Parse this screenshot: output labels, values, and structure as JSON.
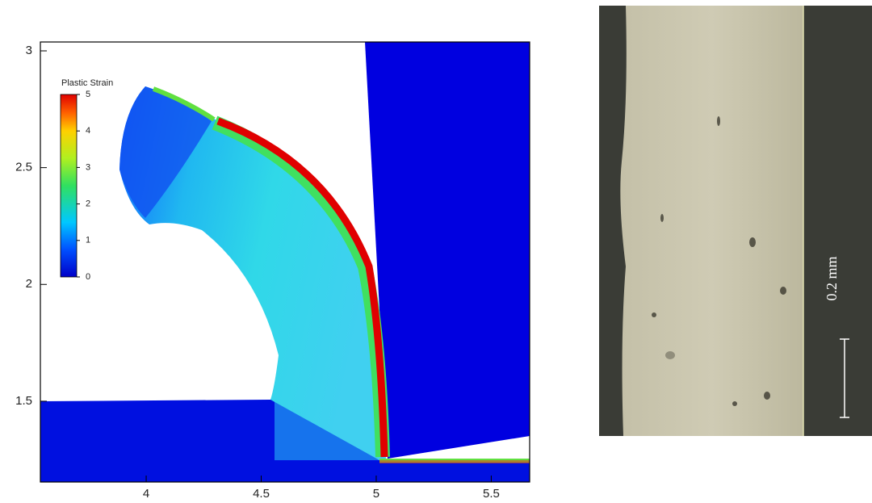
{
  "chart_data": [
    {
      "type": "contour",
      "xlim": [
        3.54,
        5.667
      ],
      "ylim": [
        1.154,
        3.038
      ],
      "xticks": [
        4,
        4.5,
        5,
        5.5
      ],
      "yticks": [
        1.5,
        2,
        2.5,
        3
      ],
      "colorbar": {
        "title": "Plastic Strain",
        "clim": [
          0,
          5
        ],
        "ticks": [
          0,
          1,
          2,
          3,
          4,
          5
        ]
      }
    },
    {
      "type": "image",
      "scale_bar": "0.2 mm"
    }
  ]
}
